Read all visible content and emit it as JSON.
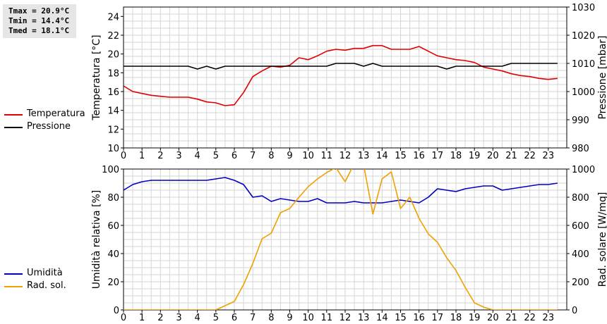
{
  "stats": {
    "tmax": "Tmax = 20.9°C",
    "tmin": "Tmin = 14.4°C",
    "tmed": "Tmed = 18.1°C"
  },
  "legend_top": [
    {
      "label": "Temperatura",
      "color": "#e00000"
    },
    {
      "label": "Pressione",
      "color": "#000000"
    }
  ],
  "legend_bottom": [
    {
      "label": "Umidità",
      "color": "#0000c0"
    },
    {
      "label": "Rad. sol.",
      "color": "#f0a000"
    }
  ],
  "chart_data": [
    {
      "type": "line",
      "xlabel": "",
      "ylabel": "Temperatura [°C]",
      "y2label": "Pressione [mbar]",
      "xlim": [
        0,
        24
      ],
      "ylim": [
        10,
        25
      ],
      "y2lim": [
        980,
        1030
      ],
      "xticks": [
        "0",
        "1",
        "2",
        "3",
        "4",
        "5",
        "6",
        "7",
        "8",
        "9",
        "10",
        "11",
        "12",
        "13",
        "14",
        "15",
        "16",
        "17",
        "18",
        "19",
        "20",
        "21",
        "22",
        "23"
      ],
      "yticks": [
        "10",
        "12",
        "14",
        "16",
        "18",
        "20",
        "22",
        "24"
      ],
      "y2ticks": [
        "980",
        "990",
        "1000",
        "1010",
        "1020",
        "1030"
      ],
      "grid": true,
      "series": [
        {
          "name": "Temperatura",
          "axis": "left",
          "color": "#e00000",
          "x": [
            0,
            0.5,
            1,
            1.5,
            2,
            2.5,
            3,
            3.5,
            4,
            4.5,
            5,
            5.5,
            6,
            6.5,
            7,
            7.5,
            8,
            8.5,
            9,
            9.5,
            10,
            10.5,
            11,
            11.5,
            12,
            12.5,
            13,
            13.5,
            14,
            14.5,
            15,
            15.5,
            16,
            16.5,
            17,
            17.5,
            18,
            18.5,
            19,
            19.5,
            20,
            20.5,
            21,
            21.5,
            22,
            22.5,
            23,
            23.5
          ],
          "y": [
            16.6,
            16.0,
            15.8,
            15.6,
            15.5,
            15.4,
            15.4,
            15.4,
            15.2,
            14.9,
            14.8,
            14.5,
            14.6,
            15.9,
            17.6,
            18.2,
            18.7,
            18.6,
            18.8,
            19.6,
            19.4,
            19.8,
            20.3,
            20.5,
            20.4,
            20.6,
            20.6,
            20.9,
            20.9,
            20.5,
            20.5,
            20.5,
            20.8,
            20.3,
            19.8,
            19.6,
            19.4,
            19.3,
            19.1,
            18.6,
            18.4,
            18.2,
            17.9,
            17.7,
            17.6,
            17.4,
            17.3,
            17.4
          ]
        },
        {
          "name": "Pressione",
          "axis": "right",
          "color": "#000000",
          "x": [
            0,
            0.5,
            1,
            1.5,
            2,
            2.5,
            3,
            3.5,
            4,
            4.5,
            5,
            5.5,
            6,
            6.5,
            7,
            7.5,
            8,
            8.5,
            9,
            9.5,
            10,
            10.5,
            11,
            11.5,
            12,
            12.5,
            13,
            13.5,
            14,
            14.5,
            15,
            15.5,
            16,
            16.5,
            17,
            17.5,
            18,
            18.5,
            19,
            19.5,
            20,
            20.5,
            21,
            21.5,
            22,
            22.5,
            23,
            23.5
          ],
          "y": [
            1009,
            1009,
            1009,
            1009,
            1009,
            1009,
            1009,
            1009,
            1008,
            1009,
            1008,
            1009,
            1009,
            1009,
            1009,
            1009,
            1009,
            1009,
            1009,
            1009,
            1009,
            1009,
            1009,
            1010,
            1010,
            1010,
            1009,
            1010,
            1009,
            1009,
            1009,
            1009,
            1009,
            1009,
            1009,
            1008,
            1009,
            1009,
            1009,
            1009,
            1009,
            1009,
            1010,
            1010,
            1010,
            1010,
            1010,
            1010
          ]
        }
      ]
    },
    {
      "type": "line",
      "xlabel": "",
      "ylabel": "Umidità relativa [%]",
      "y2label": "Rad. solare [W/mq]",
      "xlim": [
        0,
        24
      ],
      "ylim": [
        0,
        100
      ],
      "y2lim": [
        0,
        1000
      ],
      "xticks": [
        "0",
        "1",
        "2",
        "3",
        "4",
        "5",
        "6",
        "7",
        "8",
        "9",
        "10",
        "11",
        "12",
        "13",
        "14",
        "15",
        "16",
        "17",
        "18",
        "19",
        "20",
        "21",
        "22",
        "23"
      ],
      "yticks": [
        "0",
        "20",
        "40",
        "60",
        "80",
        "100"
      ],
      "y2ticks": [
        "0",
        "200",
        "400",
        "600",
        "800",
        "1000"
      ],
      "grid": true,
      "series": [
        {
          "name": "Umidità",
          "axis": "left",
          "color": "#0000c0",
          "x": [
            0,
            0.5,
            1,
            1.5,
            2,
            2.5,
            3,
            3.5,
            4,
            4.5,
            5,
            5.5,
            6,
            6.5,
            7,
            7.5,
            8,
            8.5,
            9,
            9.5,
            10,
            10.5,
            11,
            11.5,
            12,
            12.5,
            13,
            13.5,
            14,
            14.5,
            15,
            15.5,
            16,
            16.5,
            17,
            17.5,
            18,
            18.5,
            19,
            19.5,
            20,
            20.5,
            21,
            21.5,
            22,
            22.5,
            23,
            23.5
          ],
          "y": [
            85,
            89,
            91,
            92,
            92,
            92,
            92,
            92,
            92,
            92,
            93,
            94,
            92,
            89,
            80,
            81,
            77,
            79,
            78,
            77,
            77,
            79,
            76,
            76,
            76,
            77,
            76,
            76,
            76,
            77,
            78,
            77,
            76,
            80,
            86,
            85,
            84,
            86,
            87,
            88,
            88,
            85,
            86,
            87,
            88,
            89,
            89,
            90
          ]
        },
        {
          "name": "Rad. sol.",
          "axis": "right",
          "color": "#f0a000",
          "x": [
            0,
            0.5,
            1,
            1.5,
            2,
            2.5,
            3,
            3.5,
            4,
            4.5,
            5,
            5.5,
            6,
            6.5,
            7,
            7.5,
            8,
            8.5,
            9,
            9.5,
            10,
            10.5,
            11,
            11.5,
            12,
            12.5,
            13,
            13.5,
            14,
            14.5,
            15,
            15.5,
            16,
            16.5,
            17,
            17.5,
            18,
            18.5,
            19,
            19.5,
            20,
            20.5,
            21,
            21.5,
            22,
            22.5,
            23,
            23.5
          ],
          "y": [
            0,
            0,
            0,
            0,
            0,
            0,
            0,
            0,
            0,
            0,
            0,
            30,
            60,
            180,
            330,
            505,
            545,
            690,
            720,
            800,
            875,
            930,
            975,
            1010,
            910,
            1040,
            1030,
            680,
            930,
            980,
            720,
            800,
            650,
            540,
            480,
            370,
            280,
            160,
            50,
            20,
            0,
            0,
            0,
            0,
            0,
            0,
            0,
            0
          ]
        }
      ]
    }
  ]
}
